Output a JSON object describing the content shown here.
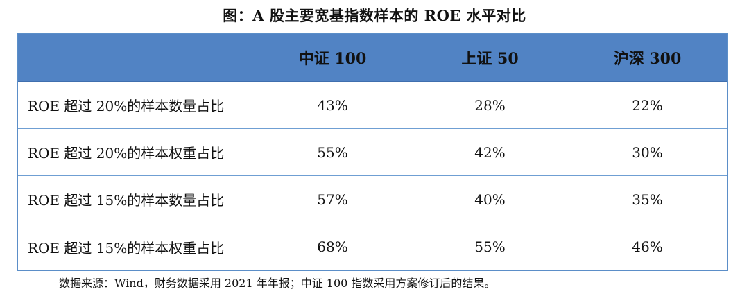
{
  "title": "图：A 股主要宽基指数样本的 ROE 水平对比",
  "table": {
    "header": [
      "中证 100",
      "上证 50",
      "沪深 300"
    ],
    "rows": [
      {
        "label": "ROE 超过 20%的样本数量占比",
        "values": [
          "43%",
          "28%",
          "22%"
        ]
      },
      {
        "label": "ROE 超过 20%的样本权重占比",
        "values": [
          "55%",
          "42%",
          "30%"
        ]
      },
      {
        "label": "ROE 超过 15%的样本数量占比",
        "values": [
          "57%",
          "40%",
          "35%"
        ]
      },
      {
        "label": "ROE 超过 15%的样本权重占比",
        "values": [
          "68%",
          "55%",
          "46%"
        ]
      }
    ]
  },
  "note": "数据来源：Wind，财务数据采用 2021 年年报；中证 100 指数采用方案修订后的结果。",
  "colors": {
    "header_bg": "#5183c4",
    "row_border": "#6f9fd3"
  }
}
